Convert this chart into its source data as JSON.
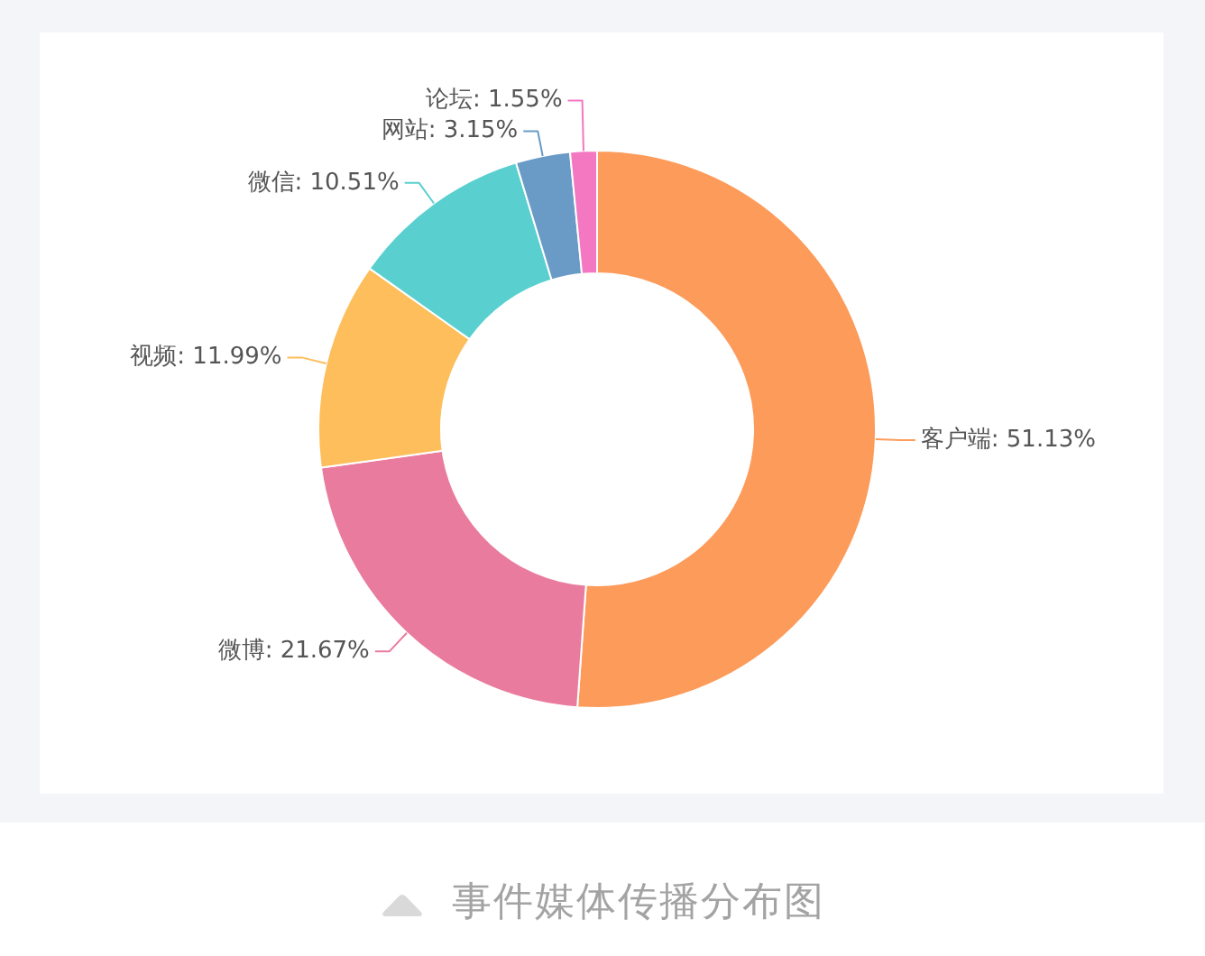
{
  "chart_data": {
    "type": "donut",
    "categories": [
      "客户端",
      "微博",
      "视频",
      "微信",
      "网站",
      "论坛"
    ],
    "values": [
      51.13,
      21.67,
      11.99,
      10.51,
      3.15,
      1.55
    ],
    "colors": [
      "#fd9b5a",
      "#e97c9e",
      "#fdbe5b",
      "#5acfcf",
      "#6a9bc6",
      "#f377c1"
    ],
    "value_labels": [
      "51.13%",
      "21.67%",
      "11.99%",
      "10.51%",
      "3.15%",
      "1.55%"
    ],
    "annotations": [
      "事件媒体传播分布图"
    ]
  }
}
